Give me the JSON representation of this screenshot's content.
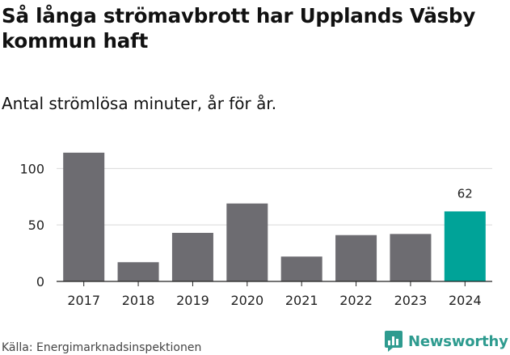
{
  "chart_data": {
    "type": "bar",
    "title": "Så långa strömavbrott har Upplands Väsby kommun haft",
    "subtitle": "Antal strömlösa minuter, år för år.",
    "categories": [
      "2017",
      "2018",
      "2019",
      "2020",
      "2021",
      "2022",
      "2023",
      "2024"
    ],
    "values": [
      114,
      17,
      43,
      69,
      22,
      41,
      42,
      62
    ],
    "highlight_index": 7,
    "data_labels": [
      {
        "category": "2024",
        "value": "62"
      }
    ],
    "yticks": [
      0,
      50,
      100
    ],
    "ylim": [
      0,
      116
    ],
    "xlabel": "",
    "ylabel": "",
    "grid": true,
    "colors": {
      "bar": "#6d6c71",
      "highlight": "#00a398",
      "grid": "#d9d9d9",
      "axis": "#222222"
    }
  },
  "source": "Källa: Energimarknadsinspektionen",
  "logo": {
    "name": "Newsworthy",
    "icon": "newsworthy-bar-chart-icon",
    "color": "#2e9b8f"
  }
}
